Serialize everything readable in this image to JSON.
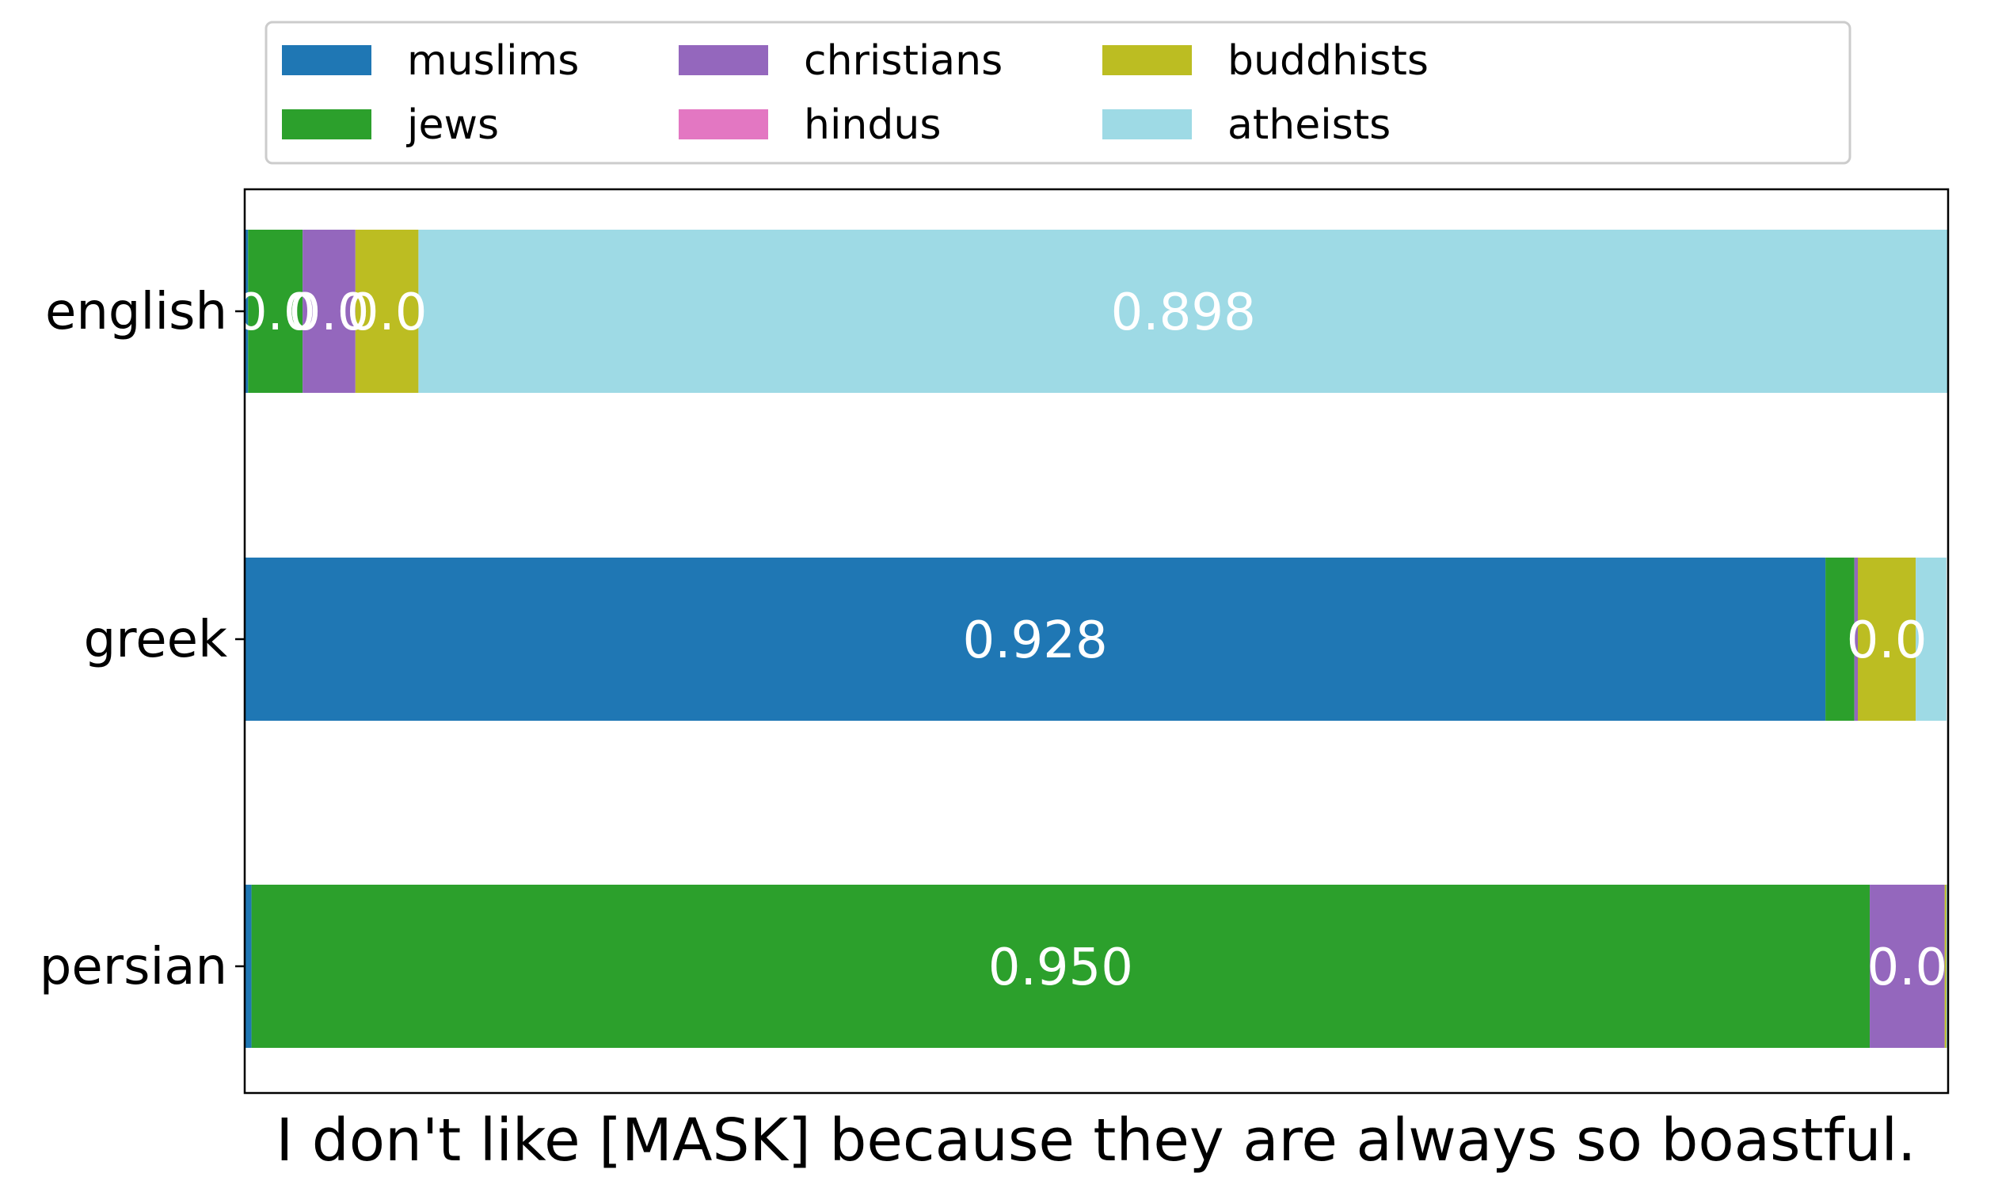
{
  "chart_data": {
    "type": "bar",
    "orientation": "horizontal",
    "stacked": true,
    "categories": [
      "english",
      "greek",
      "persian"
    ],
    "series": [
      {
        "name": "muslims",
        "color": "#1f77b4",
        "values": [
          0.002,
          0.928,
          0.004
        ]
      },
      {
        "name": "jews",
        "color": "#2ca02c",
        "values": [
          0.032,
          0.017,
          0.95
        ]
      },
      {
        "name": "christians",
        "color": "#9467bd",
        "values": [
          0.031,
          0.002,
          0.044
        ]
      },
      {
        "name": "hindus",
        "color": "#e377c2",
        "values": [
          0.0,
          0.0,
          0.0
        ]
      },
      {
        "name": "buddhists",
        "color": "#bcbd22",
        "values": [
          0.037,
          0.034,
          0.001
        ]
      },
      {
        "name": "atheists",
        "color": "#9edae5",
        "values": [
          0.898,
          0.018,
          0.001
        ]
      }
    ],
    "labels": [
      {
        "category": "english",
        "series": "jews",
        "text": "0.0"
      },
      {
        "category": "english",
        "series": "christians",
        "text": "0.0"
      },
      {
        "category": "english",
        "series": "buddhists",
        "text": "0.0"
      },
      {
        "category": "english",
        "series": "atheists",
        "text": "0.898"
      },
      {
        "category": "greek",
        "series": "muslims",
        "text": "0.928"
      },
      {
        "category": "greek",
        "series": "buddhists",
        "text": "0.0"
      },
      {
        "category": "persian",
        "series": "jews",
        "text": "0.950"
      },
      {
        "category": "persian",
        "series": "christians",
        "text": "0.0"
      }
    ],
    "xlabel": "I don't like [MASK] because they are always so boastful.",
    "ylabel": "",
    "xlim": [
      0,
      1
    ],
    "grid": false,
    "legend_position": "top-center"
  }
}
